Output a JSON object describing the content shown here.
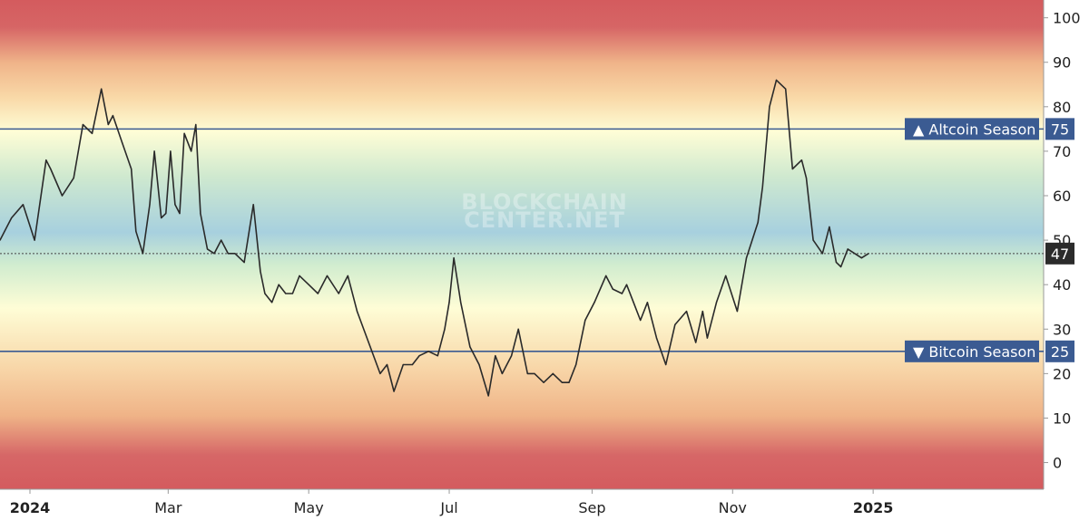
{
  "watermark": {
    "line1": "BLOCKCHAIN",
    "line2": "CENTER.NET"
  },
  "chart_data": {
    "type": "line",
    "title": "",
    "xlabel": "",
    "ylabel": "",
    "ylim": [
      -6,
      104
    ],
    "xlim": [
      "2023-12-19",
      "2025-03-16"
    ],
    "y_ticks": [
      0,
      10,
      20,
      30,
      40,
      50,
      60,
      70,
      80,
      90,
      100
    ],
    "x_ticks": [
      {
        "label": "2024",
        "date": "2024-01-01",
        "bold": true
      },
      {
        "label": "Mar",
        "date": "2024-03-01",
        "bold": false
      },
      {
        "label": "May",
        "date": "2024-05-01",
        "bold": false
      },
      {
        "label": "Jul",
        "date": "2024-07-01",
        "bold": false
      },
      {
        "label": "Sep",
        "date": "2024-09-01",
        "bold": false
      },
      {
        "label": "Nov",
        "date": "2024-11-01",
        "bold": false
      },
      {
        "label": "2025",
        "date": "2025-01-01",
        "bold": true
      }
    ],
    "reference_lines": [
      {
        "label": "▲ Altcoin Season",
        "value": 75,
        "value_label": "75"
      },
      {
        "label": "▼ Bitcoin Season",
        "value": 25,
        "value_label": "25"
      }
    ],
    "current_value": {
      "value": 47,
      "value_label": "47"
    },
    "series": [
      {
        "x": [
          "2023-12-19",
          "2023-12-24",
          "2023-12-29",
          "2024-01-03",
          "2024-01-08",
          "2024-01-10",
          "2024-01-15",
          "2024-01-20",
          "2024-01-24",
          "2024-01-28",
          "2024-02-01",
          "2024-02-04",
          "2024-02-06",
          "2024-02-10",
          "2024-02-14",
          "2024-02-16",
          "2024-02-19",
          "2024-02-22",
          "2024-02-24",
          "2024-02-27",
          "2024-02-29",
          "2024-03-02",
          "2024-03-04",
          "2024-03-06",
          "2024-03-08",
          "2024-03-11",
          "2024-03-13",
          "2024-03-15",
          "2024-03-18",
          "2024-03-21",
          "2024-03-24",
          "2024-03-27",
          "2024-03-30",
          "2024-04-03",
          "2024-04-07",
          "2024-04-10",
          "2024-04-12",
          "2024-04-15",
          "2024-04-18",
          "2024-04-21",
          "2024-04-24",
          "2024-04-27",
          "2024-05-01",
          "2024-05-05",
          "2024-05-09",
          "2024-05-14",
          "2024-05-18",
          "2024-05-22",
          "2024-05-27",
          "2024-06-01",
          "2024-06-04",
          "2024-06-07",
          "2024-06-11",
          "2024-06-15",
          "2024-06-18",
          "2024-06-22",
          "2024-06-26",
          "2024-06-29",
          "2024-07-01",
          "2024-07-03",
          "2024-07-06",
          "2024-07-10",
          "2024-07-14",
          "2024-07-18",
          "2024-07-21",
          "2024-07-24",
          "2024-07-28",
          "2024-07-31",
          "2024-08-04",
          "2024-08-07",
          "2024-08-11",
          "2024-08-15",
          "2024-08-19",
          "2024-08-22",
          "2024-08-25",
          "2024-08-29",
          "2024-09-02",
          "2024-09-07",
          "2024-09-10",
          "2024-09-14",
          "2024-09-16",
          "2024-09-19",
          "2024-09-22",
          "2024-09-25",
          "2024-09-29",
          "2024-10-03",
          "2024-10-07",
          "2024-10-12",
          "2024-10-16",
          "2024-10-19",
          "2024-10-21",
          "2024-10-25",
          "2024-10-29",
          "2024-11-03",
          "2024-11-07",
          "2024-11-12",
          "2024-11-14",
          "2024-11-17",
          "2024-11-20",
          "2024-11-24",
          "2024-11-27",
          "2024-12-01",
          "2024-12-03",
          "2024-12-06",
          "2024-12-10",
          "2024-12-13",
          "2024-12-16",
          "2024-12-18",
          "2024-12-21",
          "2024-12-24",
          "2024-12-27",
          "2024-12-30"
        ],
        "values": [
          50,
          55,
          58,
          50,
          68,
          66,
          60,
          64,
          76,
          74,
          84,
          76,
          78,
          72,
          66,
          52,
          47,
          58,
          70,
          55,
          56,
          70,
          58,
          56,
          74,
          70,
          76,
          56,
          48,
          47,
          50,
          47,
          47,
          45,
          58,
          43,
          38,
          36,
          40,
          38,
          38,
          42,
          40,
          38,
          42,
          38,
          42,
          34,
          27,
          20,
          22,
          16,
          22,
          22,
          24,
          25,
          24,
          30,
          36,
          46,
          36,
          26,
          22,
          15,
          24,
          20,
          24,
          30,
          20,
          20,
          18,
          20,
          18,
          18,
          22,
          32,
          36,
          42,
          39,
          38,
          40,
          36,
          32,
          36,
          28,
          22,
          31,
          34,
          27,
          34,
          28,
          36,
          42,
          34,
          46,
          54,
          62,
          80,
          86,
          84,
          66,
          68,
          64,
          50,
          47,
          53,
          45,
          44,
          48,
          47,
          46,
          47
        ]
      }
    ]
  }
}
